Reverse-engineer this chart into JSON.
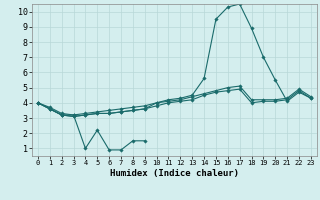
{
  "xlabel": "Humidex (Indice chaleur)",
  "bg_color": "#d4eeee",
  "line_color": "#1a6b6b",
  "grid_color": "#b8d8d8",
  "xlim": [
    -0.5,
    23.5
  ],
  "ylim": [
    0.5,
    10.5
  ],
  "xticks": [
    0,
    1,
    2,
    3,
    4,
    5,
    6,
    7,
    8,
    9,
    10,
    11,
    12,
    13,
    14,
    15,
    16,
    17,
    18,
    19,
    20,
    21,
    22,
    23
  ],
  "yticks": [
    1,
    2,
    3,
    4,
    5,
    6,
    7,
    8,
    9,
    10
  ],
  "lines": [
    {
      "x": [
        0,
        1,
        2,
        3,
        4,
        5,
        6,
        7,
        8,
        9
      ],
      "y": [
        4.0,
        3.6,
        3.2,
        3.2,
        1.0,
        2.2,
        0.9,
        0.9,
        1.5,
        1.5
      ]
    },
    {
      "x": [
        0,
        1,
        2,
        3,
        4,
        5,
        6,
        7,
        8,
        9,
        10,
        11,
        12,
        13,
        14,
        15,
        16,
        17,
        18,
        19,
        20,
        21,
        22,
        23
      ],
      "y": [
        4.0,
        3.6,
        3.2,
        3.1,
        3.2,
        3.3,
        3.3,
        3.4,
        3.5,
        3.6,
        3.8,
        4.0,
        4.1,
        4.2,
        4.5,
        4.7,
        4.8,
        4.9,
        4.0,
        4.1,
        4.1,
        4.2,
        4.8,
        4.3
      ]
    },
    {
      "x": [
        0,
        1,
        2,
        3,
        4,
        5,
        6,
        7,
        8,
        9,
        10,
        11,
        12,
        13,
        14,
        15,
        16,
        17,
        18,
        19,
        20,
        21,
        22,
        23
      ],
      "y": [
        4.0,
        3.6,
        3.2,
        3.1,
        3.2,
        3.3,
        3.3,
        3.4,
        3.5,
        3.6,
        4.0,
        4.2,
        4.3,
        4.5,
        5.6,
        9.5,
        10.3,
        10.5,
        8.9,
        7.0,
        5.5,
        4.1,
        4.7,
        4.3
      ]
    },
    {
      "x": [
        0,
        1,
        2,
        3,
        4,
        5,
        6,
        7,
        8,
        9,
        10,
        11,
        12,
        13,
        14,
        15,
        16,
        17,
        18,
        19,
        20,
        21,
        22,
        23
      ],
      "y": [
        4.0,
        3.7,
        3.3,
        3.2,
        3.3,
        3.4,
        3.5,
        3.6,
        3.7,
        3.8,
        4.0,
        4.1,
        4.2,
        4.4,
        4.6,
        4.8,
        5.0,
        5.1,
        4.2,
        4.2,
        4.2,
        4.3,
        4.9,
        4.4
      ]
    }
  ]
}
